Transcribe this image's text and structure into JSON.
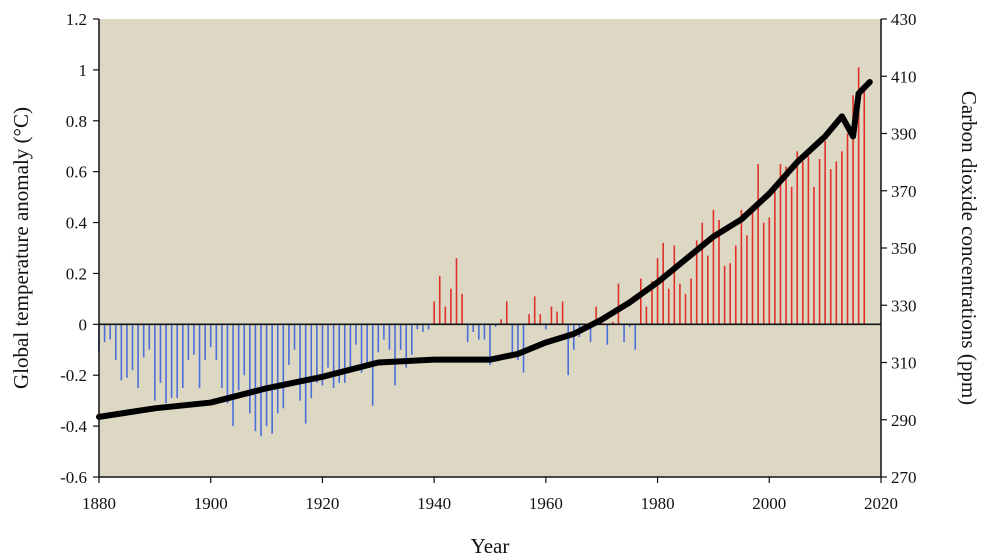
{
  "chart_data": {
    "type": "bar",
    "xlabel": "Year",
    "ylabel": "Global temperature anomaly (°C)",
    "y2label": "Carbon dioxide concentrations (ppm)",
    "xlim": [
      1880,
      2020
    ],
    "ylim": [
      -0.6,
      1.2
    ],
    "y2lim": [
      270,
      430
    ],
    "xticks": [
      1880,
      1900,
      1920,
      1940,
      1960,
      1980,
      2000,
      2020
    ],
    "yticks": [
      -0.6,
      -0.4,
      -0.2,
      0,
      0.2,
      0.4,
      0.6,
      0.8,
      1,
      1.2
    ],
    "y2ticks": [
      270,
      290,
      310,
      330,
      350,
      370,
      390,
      410,
      430
    ],
    "grid": false,
    "colors": {
      "positive": "#e0302a",
      "negative": "#4a6fd8",
      "co2": "#000000",
      "plot_bg": "#ddd8c4"
    },
    "series": [
      {
        "type": "bar",
        "axis": "left",
        "x": [
          1880,
          1881,
          1882,
          1883,
          1884,
          1885,
          1886,
          1887,
          1888,
          1889,
          1890,
          1891,
          1892,
          1893,
          1894,
          1895,
          1896,
          1897,
          1898,
          1899,
          1900,
          1901,
          1902,
          1903,
          1904,
          1905,
          1906,
          1907,
          1908,
          1909,
          1910,
          1911,
          1912,
          1913,
          1914,
          1915,
          1916,
          1917,
          1918,
          1919,
          1920,
          1921,
          1922,
          1923,
          1924,
          1925,
          1926,
          1927,
          1928,
          1929,
          1930,
          1931,
          1932,
          1933,
          1934,
          1935,
          1936,
          1937,
          1938,
          1939,
          1940,
          1941,
          1942,
          1943,
          1944,
          1945,
          1946,
          1947,
          1948,
          1949,
          1950,
          1951,
          1952,
          1953,
          1954,
          1955,
          1956,
          1957,
          1958,
          1959,
          1960,
          1961,
          1962,
          1963,
          1964,
          1965,
          1966,
          1967,
          1968,
          1969,
          1970,
          1971,
          1972,
          1973,
          1974,
          1975,
          1976,
          1977,
          1978,
          1979,
          1980,
          1981,
          1982,
          1983,
          1984,
          1985,
          1986,
          1987,
          1988,
          1989,
          1990,
          1991,
          1992,
          1993,
          1994,
          1995,
          1996,
          1997,
          1998,
          1999,
          2000,
          2001,
          2002,
          2003,
          2004,
          2005,
          2006,
          2007,
          2008,
          2009,
          2010,
          2011,
          2012,
          2013,
          2014,
          2015,
          2016,
          2017
        ],
        "values": [
          -0.11,
          -0.07,
          -0.06,
          -0.14,
          -0.22,
          -0.21,
          -0.18,
          -0.25,
          -0.13,
          -0.1,
          -0.3,
          -0.23,
          -0.31,
          -0.29,
          -0.29,
          -0.25,
          -0.14,
          -0.12,
          -0.25,
          -0.14,
          -0.09,
          -0.14,
          -0.25,
          -0.31,
          -0.4,
          -0.26,
          -0.2,
          -0.35,
          -0.42,
          -0.44,
          -0.4,
          -0.43,
          -0.35,
          -0.33,
          -0.16,
          -0.1,
          -0.3,
          -0.39,
          -0.29,
          -0.23,
          -0.24,
          -0.17,
          -0.25,
          -0.23,
          -0.23,
          -0.19,
          -0.08,
          -0.19,
          -0.17,
          -0.32,
          -0.11,
          -0.06,
          -0.1,
          -0.24,
          -0.1,
          -0.17,
          -0.12,
          -0.02,
          -0.03,
          -0.02,
          0.09,
          0.19,
          0.07,
          0.14,
          0.26,
          0.12,
          -0.07,
          -0.03,
          -0.06,
          -0.06,
          -0.16,
          -0.01,
          0.02,
          0.09,
          -0.12,
          -0.14,
          -0.19,
          0.04,
          0.11,
          0.04,
          -0.02,
          0.07,
          0.05,
          0.09,
          -0.2,
          -0.1,
          -0.05,
          -0.02,
          -0.07,
          0.07,
          0.03,
          -0.08,
          0.01,
          0.16,
          -0.07,
          -0.01,
          -0.1,
          0.18,
          0.07,
          0.17,
          0.26,
          0.32,
          0.14,
          0.31,
          0.16,
          0.12,
          0.18,
          0.33,
          0.4,
          0.27,
          0.45,
          0.41,
          0.23,
          0.24,
          0.31,
          0.45,
          0.35,
          0.46,
          0.63,
          0.4,
          0.42,
          0.54,
          0.63,
          0.62,
          0.54,
          0.68,
          0.64,
          0.66,
          0.54,
          0.65,
          0.72,
          0.61,
          0.64,
          0.68,
          0.75,
          0.9,
          1.01,
          0.92
        ]
      },
      {
        "type": "line",
        "axis": "right",
        "x": [
          1880,
          1890,
          1900,
          1910,
          1920,
          1930,
          1940,
          1950,
          1955,
          1960,
          1965,
          1970,
          1975,
          1980,
          1985,
          1990,
          1995,
          2000,
          2005,
          2010,
          2013,
          2015,
          2016,
          2017,
          2018
        ],
        "values": [
          291,
          294,
          296,
          301,
          305,
          310,
          311,
          311,
          313,
          317,
          320,
          325,
          331,
          338,
          346,
          354,
          360,
          369,
          380,
          389,
          396,
          389,
          404,
          406,
          408
        ]
      }
    ]
  }
}
